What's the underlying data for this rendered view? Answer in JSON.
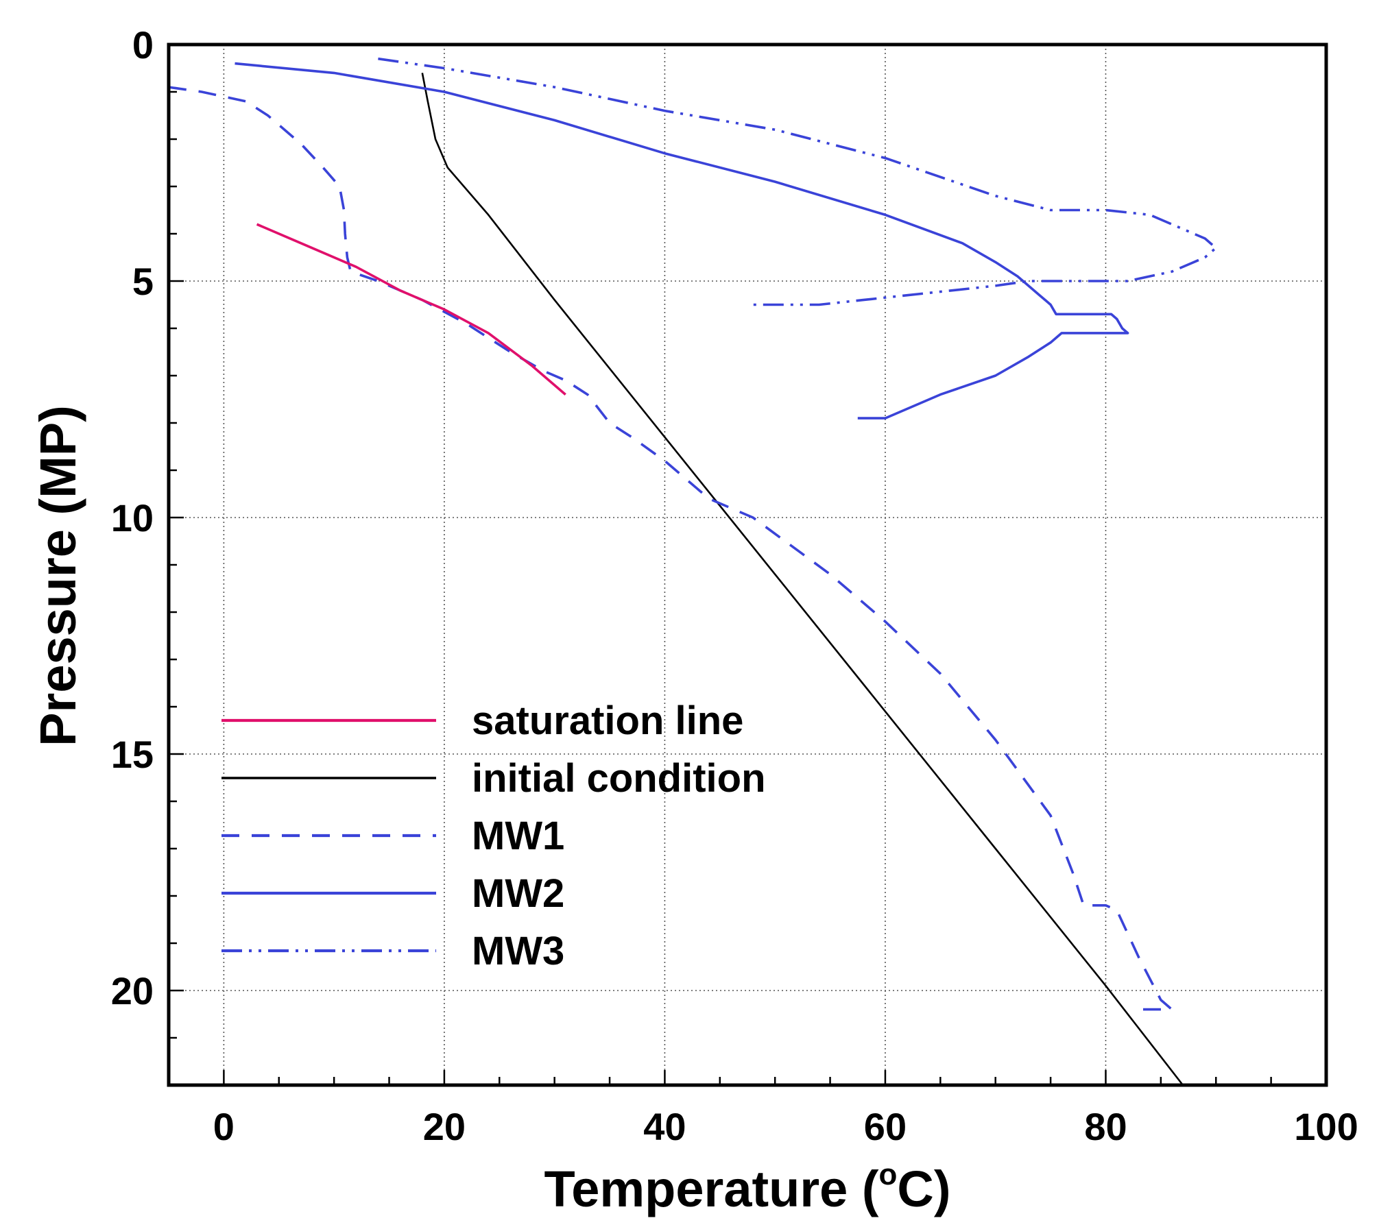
{
  "chart_data": {
    "type": "line",
    "xlabel": "Temperature (",
    "xlabel_sup": "o",
    "xlabel_end": "C)",
    "ylabel": "Pressure (MP)",
    "xlim": [
      -5,
      100
    ],
    "ylim": [
      22,
      0
    ],
    "y_inverted": true,
    "grid": true,
    "x_ticks": [
      0,
      20,
      40,
      60,
      80,
      100
    ],
    "x_tick_labels": [
      "0",
      "20",
      "40",
      "60",
      "80",
      "100"
    ],
    "x_minor_ticks": [
      5,
      10,
      15,
      25,
      30,
      35,
      45,
      50,
      55,
      65,
      70,
      75,
      85,
      90,
      95
    ],
    "y_ticks": [
      0,
      5,
      10,
      15,
      20
    ],
    "y_tick_labels": [
      "0",
      "5",
      "10",
      "15",
      "20"
    ],
    "y_minor_ticks": [
      1,
      2,
      3,
      4,
      6,
      7,
      8,
      9,
      11,
      12,
      13,
      14,
      16,
      17,
      18,
      19,
      21
    ],
    "legend_position": "lower-left",
    "series": [
      {
        "name": "saturation line",
        "color": "#e0106b",
        "dash": "solid",
        "x": [
          3,
          8,
          12,
          16,
          20,
          24,
          28,
          31
        ],
        "y": [
          3.8,
          4.3,
          4.7,
          5.2,
          5.6,
          6.1,
          6.8,
          7.4
        ]
      },
      {
        "name": "initial condition",
        "color": "#000000",
        "dash": "solid",
        "x": [
          18,
          18.5,
          19.2,
          20.3,
          24,
          30,
          40,
          50,
          60,
          70,
          80,
          87
        ],
        "y": [
          0.6,
          1.2,
          2.0,
          2.6,
          3.6,
          5.4,
          8.3,
          11.2,
          14.1,
          17.0,
          19.9,
          22.0
        ]
      },
      {
        "name": "MW1",
        "color": "#3a43d8",
        "dash": "dashed",
        "x": [
          -5,
          -2,
          0,
          2,
          4,
          7,
          9,
          10.5,
          10.9,
          11,
          11.2,
          11.5,
          14,
          18,
          22,
          26,
          29,
          31,
          33,
          35,
          37,
          40,
          44,
          48,
          55,
          60,
          65,
          70,
          75,
          77,
          78,
          80,
          81,
          83,
          85,
          86,
          84,
          83
        ],
        "y": [
          0.9,
          1.0,
          1.1,
          1.2,
          1.5,
          2.1,
          2.6,
          3.0,
          3.5,
          4.0,
          4.5,
          4.8,
          5.0,
          5.4,
          5.9,
          6.5,
          6.9,
          7.1,
          7.4,
          8.0,
          8.3,
          8.8,
          9.6,
          10.0,
          11.2,
          12.2,
          13.3,
          14.7,
          16.3,
          17.5,
          18.2,
          18.2,
          18.3,
          19.3,
          20.2,
          20.4,
          20.4,
          20.4
        ]
      },
      {
        "name": "MW2",
        "color": "#3a43d8",
        "dash": "solid",
        "x": [
          1,
          10,
          20,
          30,
          40,
          50,
          60,
          67,
          70,
          72,
          74,
          75,
          75.5,
          80.5,
          81,
          81.5,
          82,
          76,
          75,
          73,
          70,
          65,
          60,
          59,
          57.5
        ],
        "y": [
          0.4,
          0.6,
          1.0,
          1.6,
          2.3,
          2.9,
          3.6,
          4.2,
          4.6,
          4.9,
          5.3,
          5.5,
          5.7,
          5.7,
          5.8,
          6.0,
          6.1,
          6.1,
          6.3,
          6.6,
          7.0,
          7.4,
          7.9,
          7.9,
          7.9
        ]
      },
      {
        "name": "MW3",
        "color": "#3a43d8",
        "dash": "dashdotdot",
        "x": [
          14,
          20,
          30,
          40,
          50,
          60,
          70,
          75,
          77,
          80,
          84,
          87,
          89,
          90,
          89,
          86,
          82,
          79,
          76,
          73,
          70,
          66,
          62,
          58,
          54,
          50,
          47.5
        ],
        "y": [
          0.3,
          0.5,
          0.9,
          1.4,
          1.8,
          2.4,
          3.2,
          3.5,
          3.5,
          3.5,
          3.6,
          3.9,
          4.1,
          4.3,
          4.5,
          4.8,
          5.0,
          5.0,
          5.0,
          5.0,
          5.1,
          5.2,
          5.3,
          5.4,
          5.5,
          5.5,
          5.5
        ]
      }
    ]
  }
}
